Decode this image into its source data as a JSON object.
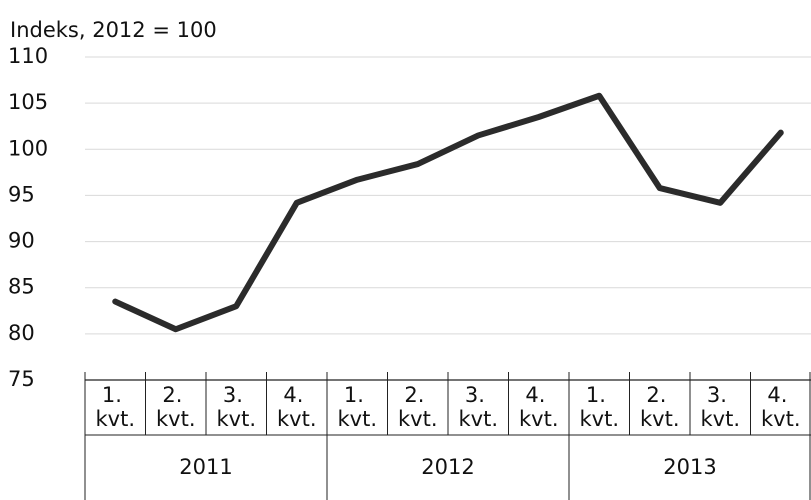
{
  "chart_data": {
    "type": "line",
    "y_label": "Indeks, 2012 = 100",
    "categories": [
      "1. kvt.",
      "2. kvt.",
      "3. kvt.",
      "4. kvt.",
      "1. kvt.",
      "2. kvt.",
      "3. kvt.",
      "4. kvt.",
      "1. kvt.",
      "2. kvt.",
      "3. kvt.",
      "4. kvt."
    ],
    "x_groups": [
      "2011",
      "2012",
      "2013"
    ],
    "values": [
      83.5,
      80.5,
      83,
      94.2,
      96.7,
      98.4,
      101.5,
      103.5,
      105.8,
      95.8,
      94.2,
      101.8
    ],
    "color": "#2b2b2b",
    "ylim": [
      75,
      110
    ],
    "yticks": [
      75,
      80,
      85,
      90,
      95,
      100,
      105,
      110
    ],
    "grid": true
  }
}
